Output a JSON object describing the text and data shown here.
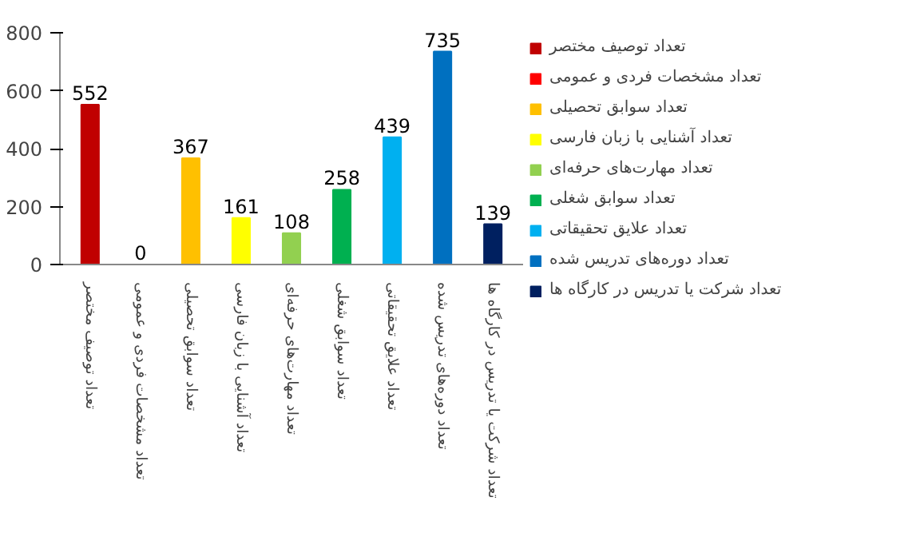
{
  "chart_data": {
    "type": "bar",
    "categories": [
      "تعداد توصیف مختصر",
      "تعداد مشخصات فردی و عمومی",
      "تعداد سوابق تحصیلی",
      "تعداد آشنایی با زبان فارسی",
      "تعداد مهارت‌های حرفه‌ای",
      "تعداد سوابق شغلی",
      "تعداد علایق تحقیقاتی",
      "تعداد دوره‌های تدریس شده",
      "تعداد شرکت یا تدریس در کارگاه ها"
    ],
    "series": [
      {
        "name": "تعداد توصیف مختصر",
        "color": "#c00000",
        "values": [
          552,
          null,
          null,
          null,
          null,
          null,
          null,
          null,
          null
        ]
      },
      {
        "name": "تعداد مشخصات فردی و عمومی",
        "color": "#ff0000",
        "values": [
          null,
          0,
          null,
          null,
          null,
          null,
          null,
          null,
          null
        ]
      },
      {
        "name": "تعداد سوابق تحصیلی",
        "color": "#ffc000",
        "values": [
          null,
          null,
          367,
          null,
          null,
          null,
          null,
          null,
          null
        ]
      },
      {
        "name": "تعداد آشنایی با زبان فارسی",
        "color": "#ffff00",
        "values": [
          null,
          null,
          null,
          161,
          null,
          null,
          null,
          null,
          null
        ]
      },
      {
        "name": "تعداد مهارت‌های حرفه‌ای",
        "color": "#92d050",
        "values": [
          null,
          null,
          null,
          null,
          108,
          null,
          null,
          null,
          null
        ]
      },
      {
        "name": "تعداد سوابق شغلی",
        "color": "#00b050",
        "values": [
          null,
          null,
          null,
          null,
          null,
          258,
          null,
          null,
          null
        ]
      },
      {
        "name": "تعداد علایق تحقیقاتی",
        "color": "#00b0f0",
        "values": [
          null,
          null,
          null,
          null,
          null,
          null,
          439,
          null,
          null
        ]
      },
      {
        "name": "تعداد دوره‌های تدریس شده",
        "color": "#0070c0",
        "values": [
          null,
          null,
          null,
          null,
          null,
          null,
          null,
          735,
          null
        ]
      },
      {
        "name": "تعداد شرکت یا تدریس در کارگاه ها",
        "color": "#002060",
        "values": [
          null,
          null,
          null,
          null,
          null,
          null,
          null,
          null,
          139
        ]
      }
    ],
    "ylim": [
      0,
      800
    ],
    "yticks": [
      0,
      200,
      400,
      600,
      800
    ],
    "data_labels": true,
    "legend": "right"
  }
}
